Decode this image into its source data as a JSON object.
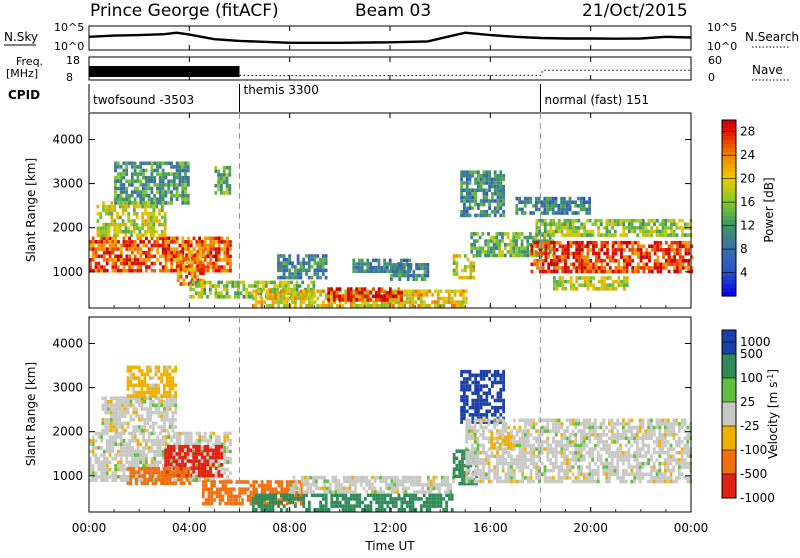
{
  "header": {
    "station": "Prince George (fitACF)",
    "beam": "Beam 03",
    "date": "21/Oct/2015"
  },
  "top_panels": {
    "nsky": {
      "label": "N.Sky",
      "axis_top": "10^5",
      "axis_bottom": "10^0",
      "right_label": "N.Search",
      "right_top": "10^5",
      "right_bottom": "10^0"
    },
    "freq": {
      "label_line1": "Freq.",
      "label_line2": "[MHz]",
      "axis_top": "18",
      "axis_bottom": "8",
      "right_label": "Nave",
      "right_top": "60",
      "right_bottom": "0"
    },
    "cpid": {
      "label": "CPID",
      "segments": [
        {
          "name": "twofsound",
          "id": "-3503",
          "start_hour": 0,
          "end_hour": 6
        },
        {
          "name": "themis",
          "id": "3300",
          "start_hour": 6,
          "end_hour": 18
        },
        {
          "name": "normal (fast)",
          "id": "151",
          "start_hour": 18,
          "end_hour": 24
        }
      ]
    }
  },
  "chart_data": [
    {
      "type": "heatmap",
      "name": "Power",
      "ylabel": "Slant Range [km]",
      "xlabel": "",
      "xlim_hours": [
        0,
        24
      ],
      "ylim": [
        180,
        4600
      ],
      "yticks": [
        "1000",
        "2000",
        "3000",
        "4000"
      ],
      "colorbar": {
        "label": "Power [dB]",
        "ticks": [
          "4",
          "8",
          "12",
          "16",
          "20",
          "24",
          "28"
        ],
        "range": [
          0,
          30
        ]
      },
      "regions": [
        {
          "t0": 0.0,
          "t1": 5.6,
          "r0": 1000,
          "r1": 1800,
          "value": 26
        },
        {
          "t0": 0.3,
          "t1": 3.0,
          "r0": 1800,
          "r1": 2600,
          "value": 18
        },
        {
          "t0": 1.0,
          "t1": 4.0,
          "r0": 2600,
          "r1": 3500,
          "value": 12
        },
        {
          "t0": 3.5,
          "t1": 4.6,
          "r0": 700,
          "r1": 1500,
          "value": 24
        },
        {
          "t0": 5.0,
          "t1": 5.6,
          "r0": 2800,
          "r1": 3400,
          "value": 14
        },
        {
          "t0": 4.0,
          "t1": 9.0,
          "r0": 400,
          "r1": 800,
          "value": 16
        },
        {
          "t0": 6.5,
          "t1": 15.0,
          "r0": 250,
          "r1": 600,
          "value": 20
        },
        {
          "t0": 9.5,
          "t1": 12.5,
          "r0": 350,
          "r1": 650,
          "value": 28
        },
        {
          "t0": 7.5,
          "t1": 9.5,
          "r0": 900,
          "r1": 1400,
          "value": 10
        },
        {
          "t0": 10.5,
          "t1": 12.8,
          "r0": 1000,
          "r1": 1300,
          "value": 9
        },
        {
          "t0": 12.0,
          "t1": 13.5,
          "r0": 800,
          "r1": 1200,
          "value": 10
        },
        {
          "t0": 14.5,
          "t1": 15.3,
          "r0": 900,
          "r1": 1400,
          "value": 18
        },
        {
          "t0": 14.8,
          "t1": 16.5,
          "r0": 2300,
          "r1": 3300,
          "value": 10
        },
        {
          "t0": 15.2,
          "t1": 18.5,
          "r0": 1400,
          "r1": 1900,
          "value": 14
        },
        {
          "t0": 17.6,
          "t1": 24.0,
          "r0": 1000,
          "r1": 1700,
          "value": 27
        },
        {
          "t0": 17.8,
          "t1": 24.0,
          "r0": 1800,
          "r1": 2200,
          "value": 16
        },
        {
          "t0": 18.5,
          "t1": 21.5,
          "r0": 600,
          "r1": 900,
          "value": 18
        },
        {
          "t0": 17.0,
          "t1": 20.0,
          "r0": 2300,
          "r1": 2700,
          "value": 9
        }
      ]
    },
    {
      "type": "heatmap",
      "name": "Velocity",
      "ylabel": "Slant Range [km]",
      "xlabel": "Time UT",
      "xticks": [
        "00:00",
        "04:00",
        "08:00",
        "12:00",
        "16:00",
        "20:00",
        "00:00"
      ],
      "xlim_hours": [
        0,
        24
      ],
      "ylim": [
        180,
        4600
      ],
      "yticks": [
        "1000",
        "2000",
        "3000",
        "4000"
      ],
      "colorbar": {
        "label": "Velocity [m s^-1]",
        "ticks": [
          "1000",
          "500",
          "100",
          "25",
          "-25",
          "-100",
          "-500",
          "-1000"
        ]
      },
      "regions": [
        {
          "t0": 0.0,
          "t1": 5.6,
          "r0": 900,
          "r1": 2000,
          "value": 0
        },
        {
          "t0": 0.5,
          "t1": 3.5,
          "r0": 2000,
          "r1": 2800,
          "value": 0
        },
        {
          "t0": 3.0,
          "t1": 5.3,
          "r0": 1000,
          "r1": 1700,
          "value": -700
        },
        {
          "t0": 1.5,
          "t1": 4.0,
          "r0": 800,
          "r1": 1200,
          "value": -150
        },
        {
          "t0": 1.5,
          "t1": 3.5,
          "r0": 2800,
          "r1": 3500,
          "value": -50
        },
        {
          "t0": 4.5,
          "t1": 8.5,
          "r0": 400,
          "r1": 900,
          "value": -200
        },
        {
          "t0": 6.5,
          "t1": 14.5,
          "r0": 250,
          "r1": 600,
          "value": 200
        },
        {
          "t0": 8.0,
          "t1": 14.5,
          "r0": 600,
          "r1": 1000,
          "value": 0
        },
        {
          "t0": 14.5,
          "t1": 15.5,
          "r0": 800,
          "r1": 1600,
          "value": 150
        },
        {
          "t0": 14.8,
          "t1": 16.5,
          "r0": 2200,
          "r1": 3400,
          "value": 600
        },
        {
          "t0": 15.0,
          "t1": 24.0,
          "r0": 900,
          "r1": 2300,
          "value": 0
        },
        {
          "t0": 16.0,
          "t1": 17.0,
          "r0": 1600,
          "r1": 2000,
          "value": -50
        }
      ]
    },
    {
      "type": "line",
      "name": "N.Sky",
      "x_hours": [
        0,
        1,
        2,
        3,
        3.5,
        4,
        5,
        6,
        8,
        10,
        12,
        13.5,
        14.5,
        15,
        16,
        17,
        18,
        19,
        20,
        21,
        22,
        23,
        24
      ],
      "values": [
        0.55,
        0.6,
        0.62,
        0.66,
        0.72,
        0.64,
        0.45,
        0.38,
        0.3,
        0.3,
        0.32,
        0.36,
        0.6,
        0.72,
        0.62,
        0.55,
        0.5,
        0.48,
        0.48,
        0.47,
        0.48,
        0.55,
        0.52
      ]
    },
    {
      "type": "line",
      "name": "Nave",
      "x_hours": [
        6,
        10,
        14,
        18,
        18.1,
        20,
        22,
        24
      ],
      "values": [
        0.2,
        0.18,
        0.2,
        0.2,
        0.42,
        0.42,
        0.42,
        0.42
      ]
    }
  ]
}
